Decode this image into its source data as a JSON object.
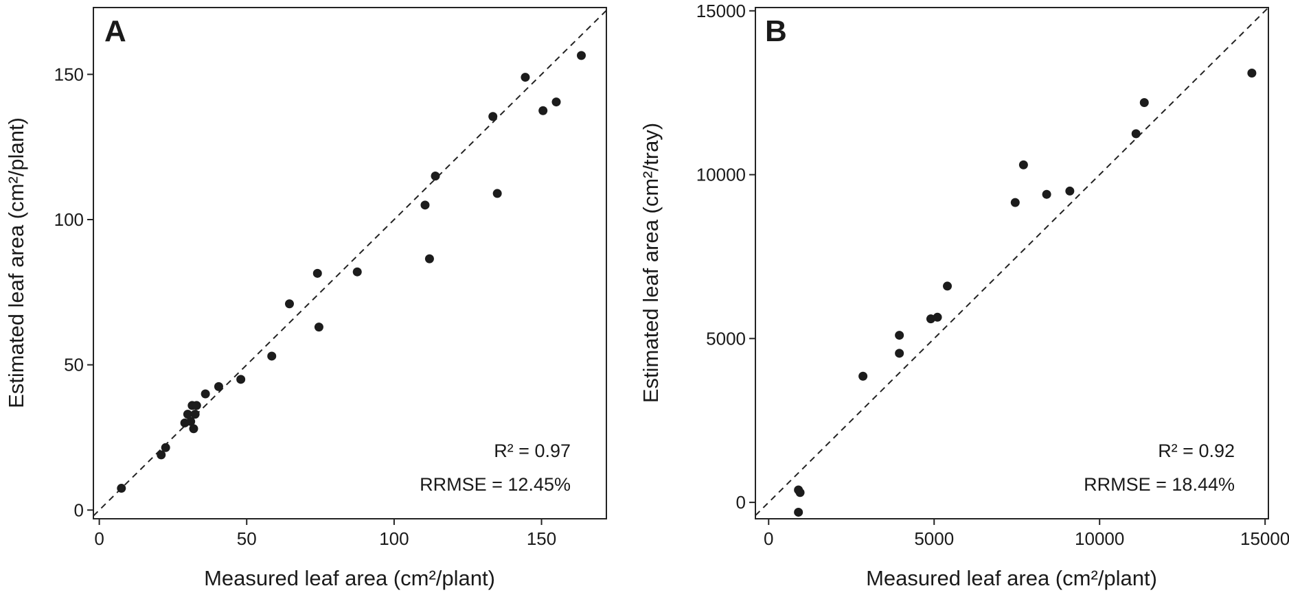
{
  "chart_data": [
    {
      "type": "scatter",
      "panel": "A",
      "xlabel": "Measured leaf area (cm²/plant)",
      "ylabel": "Estimated leaf area (cm²/plant)",
      "xlim": [
        -2,
        172
      ],
      "ylim": [
        -3,
        173
      ],
      "xticks": [
        0,
        50,
        100,
        150
      ],
      "yticks": [
        0,
        50,
        100,
        150
      ],
      "reference_line": "1:1",
      "points": [
        {
          "x": 7.5,
          "y": 7.5
        },
        {
          "x": 21,
          "y": 19
        },
        {
          "x": 22.5,
          "y": 21.5
        },
        {
          "x": 29,
          "y": 30
        },
        {
          "x": 30,
          "y": 33
        },
        {
          "x": 31,
          "y": 30.5
        },
        {
          "x": 31.5,
          "y": 36
        },
        {
          "x": 32,
          "y": 28
        },
        {
          "x": 32.5,
          "y": 33
        },
        {
          "x": 33,
          "y": 36
        },
        {
          "x": 36,
          "y": 40
        },
        {
          "x": 40.5,
          "y": 42.5
        },
        {
          "x": 48,
          "y": 45
        },
        {
          "x": 58.5,
          "y": 53
        },
        {
          "x": 64.5,
          "y": 71
        },
        {
          "x": 74,
          "y": 81.5
        },
        {
          "x": 74.5,
          "y": 63
        },
        {
          "x": 87.5,
          "y": 82
        },
        {
          "x": 110.5,
          "y": 105
        },
        {
          "x": 112,
          "y": 86.5
        },
        {
          "x": 114,
          "y": 115
        },
        {
          "x": 133.5,
          "y": 135.5
        },
        {
          "x": 135,
          "y": 109
        },
        {
          "x": 144.5,
          "y": 149
        },
        {
          "x": 150.5,
          "y": 137.5
        },
        {
          "x": 155,
          "y": 140.5
        },
        {
          "x": 163.5,
          "y": 156.5
        }
      ],
      "annotations": {
        "r2": "R² = 0.97",
        "rrmse": "RRMSE = 12.45%"
      }
    },
    {
      "type": "scatter",
      "panel": "B",
      "xlabel": "Measured leaf area (cm²/plant)",
      "ylabel": "Estimated leaf area (cm²/tray)",
      "xlim": [
        -400,
        15100
      ],
      "ylim": [
        -500,
        15100
      ],
      "xticks": [
        0,
        5000,
        10000,
        15000
      ],
      "yticks": [
        0,
        5000,
        10000,
        15000
      ],
      "reference_line": "1:1",
      "points": [
        {
          "x": 900,
          "y": -300
        },
        {
          "x": 900,
          "y": 380
        },
        {
          "x": 950,
          "y": 300
        },
        {
          "x": 2850,
          "y": 3850
        },
        {
          "x": 3950,
          "y": 4550
        },
        {
          "x": 3950,
          "y": 5100
        },
        {
          "x": 4900,
          "y": 5600
        },
        {
          "x": 5100,
          "y": 5650
        },
        {
          "x": 5400,
          "y": 6600
        },
        {
          "x": 7450,
          "y": 9150
        },
        {
          "x": 7700,
          "y": 10300
        },
        {
          "x": 8400,
          "y": 9400
        },
        {
          "x": 9100,
          "y": 9500
        },
        {
          "x": 11100,
          "y": 11250
        },
        {
          "x": 11350,
          "y": 12200
        },
        {
          "x": 14600,
          "y": 13100
        }
      ],
      "annotations": {
        "r2": "R² = 0.92",
        "rrmse": "RRMSE = 18.44%"
      }
    }
  ]
}
